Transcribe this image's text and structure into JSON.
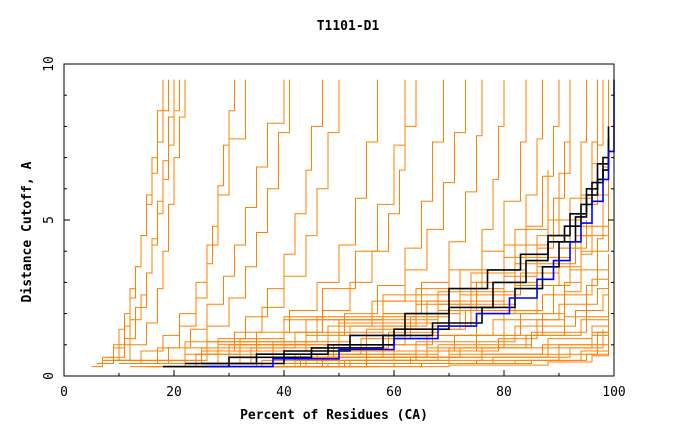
{
  "chart_data": {
    "type": "line",
    "title": "T1101-D1",
    "xlabel": "Percent of Residues (CA)",
    "ylabel": "Distance Cutoff, A",
    "xlim": [
      0,
      100
    ],
    "ylim": [
      0,
      10
    ],
    "xticks": [
      "0",
      "20",
      "40",
      "60",
      "80",
      "100"
    ],
    "yticks": [
      "0",
      "5",
      "10"
    ],
    "grid": false,
    "colors": {
      "bulk": "#ff8000",
      "highlight": "#000000",
      "best": "#0000ff"
    },
    "series": [
      {
        "group": "bulk",
        "x": [
          5,
          7,
          9,
          10,
          11,
          12,
          13,
          14,
          15,
          16,
          17,
          18,
          19
        ],
        "y": [
          0.3,
          0.6,
          1.0,
          1.5,
          2.0,
          2.8,
          3.5,
          4.5,
          5.5,
          6.5,
          7.5,
          8.5,
          9.5
        ]
      },
      {
        "group": "bulk",
        "x": [
          6,
          9,
          11,
          12,
          13,
          14,
          15,
          16,
          17,
          18
        ],
        "y": [
          0.4,
          0.9,
          1.6,
          2.5,
          3.5,
          4.5,
          5.8,
          7.0,
          8.5,
          9.5
        ]
      },
      {
        "group": "bulk",
        "x": [
          7,
          10,
          12,
          14,
          15,
          16,
          17,
          18,
          19,
          20,
          21
        ],
        "y": [
          0.5,
          1.0,
          1.8,
          2.6,
          3.3,
          4.2,
          5.2,
          6.3,
          7.4,
          8.5,
          9.5
        ]
      },
      {
        "group": "bulk",
        "x": [
          8,
          11,
          13,
          15,
          16,
          17,
          18,
          19,
          20
        ],
        "y": [
          0.6,
          1.2,
          2.2,
          3.3,
          4.4,
          5.6,
          6.9,
          8.3,
          9.5
        ]
      },
      {
        "group": "bulk",
        "x": [
          9,
          12,
          15,
          17,
          18,
          19,
          20,
          21,
          22
        ],
        "y": [
          0.5,
          1.0,
          1.7,
          2.8,
          4.0,
          5.5,
          7.0,
          8.3,
          9.5
        ]
      },
      {
        "group": "bulk",
        "x": [
          10,
          14,
          18,
          21,
          24,
          26,
          28,
          30,
          33
        ],
        "y": [
          0.4,
          0.8,
          1.3,
          2.0,
          3.0,
          4.2,
          5.8,
          7.6,
          9.5
        ]
      },
      {
        "group": "bulk",
        "x": [
          12,
          17,
          21,
          24,
          26,
          27,
          28,
          29,
          30,
          31
        ],
        "y": [
          0.4,
          0.9,
          1.6,
          2.5,
          3.6,
          4.8,
          6.1,
          7.4,
          8.5,
          9.5
        ]
      },
      {
        "group": "bulk",
        "x": [
          14,
          19,
          23,
          26,
          29,
          31,
          33,
          35,
          37,
          40
        ],
        "y": [
          0.4,
          0.9,
          1.5,
          2.3,
          3.2,
          4.2,
          5.4,
          6.7,
          8.1,
          9.5
        ]
      },
      {
        "group": "bulk",
        "x": [
          16,
          22,
          26,
          30,
          33,
          35,
          37,
          39,
          41
        ],
        "y": [
          0.4,
          0.9,
          1.6,
          2.5,
          3.5,
          4.6,
          6.0,
          7.8,
          9.5
        ]
      },
      {
        "group": "bulk",
        "x": [
          15,
          22,
          28,
          33,
          37,
          40,
          42,
          44,
          45,
          47
        ],
        "y": [
          0.3,
          0.7,
          1.2,
          1.9,
          2.8,
          3.9,
          5.2,
          6.6,
          8.0,
          9.5
        ]
      },
      {
        "group": "bulk",
        "x": [
          18,
          25,
          31,
          36,
          40,
          44,
          46,
          48,
          50
        ],
        "y": [
          0.4,
          0.8,
          1.4,
          2.2,
          3.2,
          4.5,
          6.0,
          7.8,
          9.5
        ]
      },
      {
        "group": "bulk",
        "x": [
          20,
          28,
          35,
          41,
          46,
          50,
          53,
          55,
          57
        ],
        "y": [
          0.4,
          0.8,
          1.4,
          2.1,
          3.0,
          4.2,
          5.7,
          7.5,
          9.5
        ]
      },
      {
        "group": "bulk",
        "x": [
          15,
          24,
          32,
          40,
          47,
          53,
          57,
          60,
          62
        ],
        "y": [
          0.3,
          0.7,
          1.2,
          1.9,
          2.8,
          4.0,
          5.5,
          7.4,
          9.5
        ]
      },
      {
        "group": "bulk",
        "x": [
          22,
          32,
          40,
          47,
          52,
          56,
          59,
          61,
          62,
          64
        ],
        "y": [
          0.4,
          0.8,
          1.4,
          2.1,
          3.0,
          4.0,
          5.2,
          6.6,
          8.0,
          9.5
        ]
      },
      {
        "group": "bulk",
        "x": [
          25,
          35,
          44,
          51,
          57,
          62,
          65,
          67,
          69
        ],
        "y": [
          0.4,
          0.8,
          1.3,
          2.0,
          2.9,
          4.1,
          5.6,
          7.5,
          9.5
        ]
      },
      {
        "group": "bulk",
        "x": [
          19,
          30,
          40,
          48,
          56,
          62,
          66,
          69,
          71,
          73
        ],
        "y": [
          0.3,
          0.6,
          1.0,
          1.6,
          2.4,
          3.4,
          4.7,
          6.2,
          7.8,
          9.5
        ]
      },
      {
        "group": "bulk",
        "x": [
          28,
          40,
          50,
          58,
          65,
          70,
          73,
          75,
          76
        ],
        "y": [
          0.4,
          0.8,
          1.3,
          2.0,
          3.0,
          4.3,
          5.9,
          7.7,
          9.5
        ]
      },
      {
        "group": "bulk",
        "x": [
          26,
          38,
          49,
          58,
          66,
          72,
          76,
          78,
          79,
          80
        ],
        "y": [
          0.3,
          0.6,
          1.0,
          1.6,
          2.4,
          3.4,
          4.7,
          6.3,
          8.0,
          9.5
        ]
      },
      {
        "group": "bulk",
        "x": [
          30,
          43,
          54,
          63,
          70,
          76,
          80,
          83,
          84
        ],
        "y": [
          0.3,
          0.7,
          1.2,
          1.9,
          2.8,
          4.0,
          5.6,
          7.5,
          9.5
        ]
      },
      {
        "group": "bulk",
        "x": [
          22,
          36,
          48,
          59,
          68,
          75,
          80,
          84,
          86,
          87
        ],
        "y": [
          0.3,
          0.5,
          0.9,
          1.4,
          2.1,
          3.0,
          4.2,
          5.8,
          7.6,
          9.5
        ]
      },
      {
        "group": "bulk",
        "x": [
          34,
          47,
          58,
          67,
          74,
          80,
          84,
          87,
          89,
          90
        ],
        "y": [
          0.3,
          0.6,
          1.0,
          1.6,
          2.4,
          3.4,
          4.8,
          6.4,
          8.0,
          9.5
        ]
      },
      {
        "group": "bulk",
        "x": [
          28,
          42,
          55,
          66,
          75,
          82,
          86,
          89,
          91,
          92
        ],
        "y": [
          0.3,
          0.5,
          0.8,
          1.3,
          2.0,
          2.9,
          4.1,
          5.7,
          7.5,
          9.5
        ]
      },
      {
        "group": "bulk",
        "x": [
          32,
          47,
          60,
          71,
          80,
          86,
          90,
          92,
          94,
          95
        ],
        "y": [
          0.3,
          0.5,
          0.8,
          1.3,
          2.0,
          2.9,
          4.1,
          5.7,
          7.5,
          9.5
        ]
      },
      {
        "group": "bulk",
        "x": [
          36,
          51,
          64,
          75,
          83,
          89,
          92,
          94,
          96,
          97
        ],
        "y": [
          0.3,
          0.5,
          0.8,
          1.3,
          2.0,
          2.9,
          4.1,
          5.7,
          7.5,
          9.5
        ]
      },
      {
        "group": "bulk",
        "x": [
          40,
          55,
          68,
          79,
          86,
          91,
          94,
          96,
          97,
          98
        ],
        "y": [
          0.3,
          0.5,
          0.8,
          1.2,
          1.8,
          2.7,
          3.9,
          5.5,
          7.4,
          9.5
        ]
      },
      {
        "group": "bulk",
        "x": [
          25,
          40,
          55,
          70,
          80,
          87,
          91,
          94,
          96,
          97
        ],
        "y": [
          0.3,
          0.4,
          0.6,
          0.9,
          1.3,
          2.0,
          3.0,
          4.5,
          6.8,
          9.5
        ]
      },
      {
        "group": "bulk",
        "x": [
          30,
          48,
          63,
          76,
          85,
          91,
          95,
          97,
          98,
          99
        ],
        "y": [
          0.3,
          0.4,
          0.6,
          0.9,
          1.3,
          1.9,
          2.9,
          4.4,
          6.7,
          9.5
        ]
      },
      {
        "group": "bulk",
        "x": [
          20,
          35,
          50,
          62,
          72,
          80,
          86,
          90,
          92
        ],
        "y": [
          0.3,
          0.6,
          1.0,
          1.5,
          2.2,
          3.2,
          4.5,
          6.5,
          9.5
        ]
      },
      {
        "group": "bulk",
        "x": [
          12,
          24,
          38,
          52,
          64,
          74,
          82,
          88
        ],
        "y": [
          0.4,
          0.7,
          1.1,
          1.6,
          2.3,
          3.3,
          4.7,
          6.6
        ]
      },
      {
        "group": "bulk",
        "x": [
          10,
          25,
          42,
          58,
          72,
          83,
          90,
          95
        ],
        "y": [
          0.5,
          0.9,
          1.4,
          2.0,
          2.6,
          3.3,
          4.1,
          5.0
        ]
      },
      {
        "group": "bulk",
        "x": [
          9,
          22,
          40,
          58,
          74,
          86,
          94,
          99
        ],
        "y": [
          0.5,
          1.1,
          1.8,
          2.4,
          3.0,
          3.5,
          4.0,
          4.5
        ]
      },
      {
        "group": "bulk",
        "x": [
          12,
          30,
          50,
          68,
          82,
          92,
          99
        ],
        "y": [
          0.4,
          1.0,
          1.7,
          2.3,
          2.9,
          3.4,
          3.9
        ]
      },
      {
        "group": "bulk",
        "x": [
          14,
          34,
          55,
          73,
          87,
          96,
          99
        ],
        "y": [
          0.4,
          0.9,
          1.5,
          2.1,
          2.6,
          3.1,
          3.5
        ]
      },
      {
        "group": "bulk",
        "x": [
          16,
          38,
          60,
          78,
          90,
          97,
          99
        ],
        "y": [
          0.4,
          0.8,
          1.3,
          1.8,
          2.3,
          2.8,
          3.2
        ]
      },
      {
        "group": "bulk",
        "x": [
          18,
          42,
          64,
          82,
          93,
          98,
          99
        ],
        "y": [
          0.4,
          0.7,
          1.1,
          1.6,
          2.1,
          2.6,
          3.0
        ]
      },
      {
        "group": "bulk",
        "x": [
          20,
          46,
          68,
          85,
          95,
          99
        ],
        "y": [
          0.4,
          0.7,
          1.0,
          1.4,
          1.9,
          2.7
        ]
      },
      {
        "group": "bulk",
        "x": [
          14,
          40,
          66,
          84,
          94,
          99
        ],
        "y": [
          0.4,
          0.6,
          0.9,
          1.3,
          1.8,
          2.5
        ]
      },
      {
        "group": "bulk",
        "x": [
          22,
          50,
          72,
          88,
          96,
          99
        ],
        "y": [
          0.4,
          0.6,
          0.9,
          1.2,
          1.6,
          2.3
        ]
      },
      {
        "group": "bulk",
        "x": [
          16,
          44,
          70,
          87,
          96,
          99
        ],
        "y": [
          0.3,
          0.5,
          0.7,
          1.0,
          1.4,
          2.1
        ]
      },
      {
        "group": "bulk",
        "x": [
          24,
          52,
          76,
          90,
          97,
          99
        ],
        "y": [
          0.3,
          0.5,
          0.7,
          1.0,
          1.4,
          2.0
        ]
      },
      {
        "group": "bulk",
        "x": [
          12,
          40,
          70,
          88,
          96,
          99
        ],
        "y": [
          0.3,
          0.4,
          0.6,
          0.9,
          1.3,
          1.9
        ]
      },
      {
        "group": "bulk",
        "x": [
          26,
          55,
          78,
          92,
          98
        ],
        "y": [
          0.3,
          0.4,
          0.6,
          0.9,
          1.5
        ]
      },
      {
        "group": "bulk",
        "x": [
          20,
          50,
          75,
          90,
          97,
          99
        ],
        "y": [
          0.3,
          0.4,
          0.5,
          0.7,
          1.0,
          1.6
        ]
      },
      {
        "group": "bulk",
        "x": [
          30,
          60,
          82,
          94,
          99
        ],
        "y": [
          0.3,
          0.4,
          0.5,
          0.8,
          1.3
        ]
      },
      {
        "group": "bulk",
        "x": [
          35,
          65,
          85,
          95,
          99
        ],
        "y": [
          0.3,
          0.4,
          0.5,
          0.7,
          1.2
        ]
      },
      {
        "group": "bulk",
        "x": [
          40,
          70,
          88,
          96,
          99
        ],
        "y": [
          0.3,
          0.35,
          0.45,
          0.65,
          1.1
        ]
      },
      {
        "group": "bulk",
        "x": [
          10,
          30,
          50,
          68,
          82,
          93,
          99
        ],
        "y": [
          0.4,
          1.0,
          1.8,
          2.7,
          3.6,
          4.5,
          5.4
        ]
      },
      {
        "group": "bulk",
        "x": [
          8,
          26,
          46,
          64,
          80,
          92,
          99
        ],
        "y": [
          0.5,
          1.1,
          1.9,
          2.8,
          3.8,
          4.8,
          5.8
        ]
      },
      {
        "group": "bulk",
        "x": [
          11,
          28,
          44,
          58,
          70,
          80,
          88,
          94,
          99
        ],
        "y": [
          0.4,
          1.0,
          1.8,
          2.6,
          3.4,
          4.2,
          5.0,
          5.8,
          6.5
        ]
      },
      {
        "group": "highlight",
        "x": [
          18,
          30,
          45,
          58,
          67,
          76,
          82,
          87,
          90,
          93,
          95,
          97,
          98,
          99
        ],
        "y": [
          0.3,
          0.6,
          0.9,
          1.3,
          1.7,
          2.2,
          2.8,
          3.5,
          4.3,
          5.1,
          5.8,
          6.3,
          7.0,
          7.6
        ]
      },
      {
        "group": "highlight",
        "x": [
          22,
          35,
          48,
          60,
          70,
          78,
          84,
          88,
          91,
          94,
          96,
          98,
          99
        ],
        "y": [
          0.4,
          0.7,
          1.0,
          1.5,
          2.2,
          3.0,
          3.7,
          4.3,
          4.8,
          5.5,
          6.2,
          6.6,
          7.0
        ]
      },
      {
        "group": "highlight",
        "x": [
          25,
          40,
          52,
          62,
          70,
          77,
          83,
          88,
          92,
          95,
          97,
          99
        ],
        "y": [
          0.4,
          0.8,
          1.3,
          2.0,
          2.8,
          3.4,
          3.9,
          4.5,
          5.2,
          6.0,
          6.8,
          8.0
        ]
      },
      {
        "group": "best",
        "x": [
          26,
          38,
          50,
          60,
          68,
          75,
          81,
          86,
          89,
          92,
          94,
          96,
          98,
          99,
          100
        ],
        "y": [
          0.3,
          0.55,
          0.85,
          1.2,
          1.6,
          2.0,
          2.5,
          3.1,
          3.7,
          4.3,
          4.9,
          5.6,
          6.3,
          7.2,
          9.5
        ]
      }
    ]
  }
}
